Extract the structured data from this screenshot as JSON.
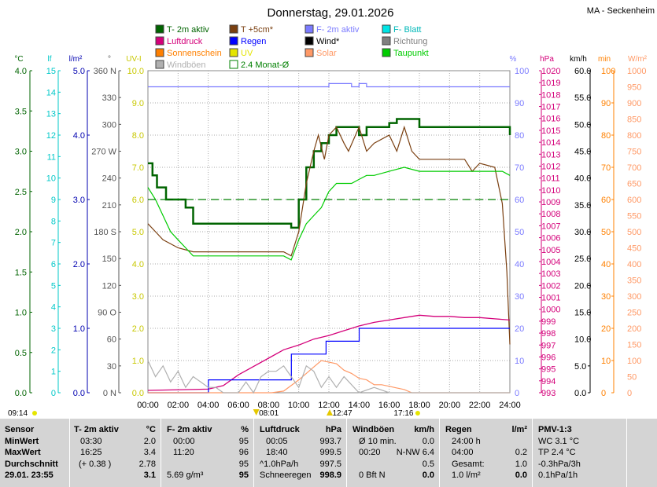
{
  "header": {
    "title": "Donnerstag, 29.01.2026",
    "location": "MA - Seckenheim"
  },
  "legend": [
    {
      "label": "T- 2m aktiv",
      "color": "#006400",
      "box": "filled"
    },
    {
      "label": "T +5cm*",
      "color": "#7a3f10",
      "box": "filled"
    },
    {
      "label": "F- 2m aktiv",
      "color": "#7b7bff",
      "box": "filled"
    },
    {
      "label": "F- Blatt",
      "color": "#00e5e5",
      "box": "filled"
    },
    {
      "label": "Luftdruck",
      "color": "#d4007a",
      "box": "filled"
    },
    {
      "label": "Regen",
      "color": "#0000ff",
      "box": "filled"
    },
    {
      "label": "Wind*",
      "color": "#000000",
      "box": "filled"
    },
    {
      "label": "Richtung",
      "color": "#808080",
      "box": "filled"
    },
    {
      "label": "Sonnenschein",
      "color": "#ff8000",
      "box": "filled"
    },
    {
      "label": "UV",
      "color": "#e5e500",
      "box": "filled"
    },
    {
      "label": "Solar",
      "color": "#ff9966",
      "box": "filled"
    },
    {
      "label": "Taupunkt",
      "color": "#00cc00",
      "box": "filled"
    },
    {
      "label": "Windböen",
      "color": "#b0b0b0",
      "box": "filled"
    },
    {
      "label": "2.4 Monat-Ø",
      "color": "#008000",
      "box": "outline"
    }
  ],
  "axes": {
    "celsius": {
      "unit": "°C",
      "color": "#006400",
      "ticks": [
        "4.0",
        "3.5",
        "3.0",
        "2.5",
        "2.0",
        "1.5",
        "1.0",
        "0.5",
        "0.0"
      ]
    },
    "leaf": {
      "unit": "lf",
      "color": "#00c8c8",
      "ticks": [
        "15",
        "14",
        "13",
        "12",
        "11",
        "10",
        "9",
        "8",
        "7",
        "6",
        "5",
        "4",
        "3",
        "2",
        "1",
        "0"
      ]
    },
    "rain": {
      "unit": "l/m²",
      "color": "#0000b0",
      "ticks": [
        "5.0",
        "4.0",
        "3.0",
        "2.0",
        "1.0",
        "0.0"
      ]
    },
    "direction": {
      "unit": "°",
      "color": "#555555",
      "ticks": [
        "360 N",
        "330",
        "300",
        "270 W",
        "240",
        "210",
        "180 S",
        "150",
        "120",
        "90 O",
        "60",
        "30",
        "0 N"
      ]
    },
    "uv": {
      "unit": "UV-I",
      "color": "#c8c800",
      "ticks": [
        "10.0",
        "9.0",
        "8.0",
        "7.0",
        "6.0",
        "5.0",
        "4.0",
        "3.0",
        "2.0",
        "1.0",
        "0.0"
      ]
    },
    "humidity": {
      "unit": "%",
      "color": "#7b7bff",
      "ticks": [
        "100",
        "90",
        "80",
        "70",
        "60",
        "50",
        "40",
        "30",
        "20",
        "10",
        "0"
      ]
    },
    "pressure": {
      "unit": "hPa",
      "color": "#d4007a",
      "ticks": [
        "1020",
        "1019",
        "1018",
        "1017",
        "1016",
        "1015",
        "1014",
        "1013",
        "1012",
        "1011",
        "1010",
        "1009",
        "1008",
        "1007",
        "1006",
        "1005",
        "1004",
        "1003",
        "1002",
        "1001",
        "1000",
        "999",
        "998",
        "997",
        "996",
        "995",
        "994",
        "993"
      ]
    },
    "wind": {
      "unit": "km/h",
      "color": "#000000",
      "ticks": [
        "60.0",
        "55.0",
        "50.0",
        "45.0",
        "40.0",
        "35.0",
        "30.0",
        "25.0",
        "20.0",
        "15.0",
        "10.0",
        "5.0",
        "0.0"
      ]
    },
    "sunshine": {
      "unit": "min",
      "color": "#ff8000",
      "ticks": [
        "100",
        "90",
        "80",
        "70",
        "60",
        "50",
        "40",
        "30",
        "20",
        "10",
        "0"
      ]
    },
    "solar": {
      "unit": "W/m²",
      "color": "#ff9966",
      "ticks": [
        "1000",
        "950",
        "900",
        "850",
        "800",
        "750",
        "700",
        "650",
        "600",
        "550",
        "500",
        "450",
        "400",
        "350",
        "300",
        "250",
        "200",
        "150",
        "100",
        "50",
        "0"
      ]
    }
  },
  "time_axis": {
    "labels": [
      "00:00",
      "02:00",
      "04:00",
      "06:00",
      "08:00",
      "10:00",
      "12:00",
      "14:00",
      "16:00",
      "18:00",
      "20:00",
      "22:00",
      "24:00"
    ],
    "sunrise": "08:01",
    "noon": "12:47",
    "sunset": "17:16",
    "left_marker": "09:14"
  },
  "chart_data": {
    "type": "line",
    "x_unit": "hours",
    "xlim": [
      0,
      24
    ],
    "series": [
      {
        "name": "T- 2m aktiv",
        "unit": "°C",
        "color": "#006400",
        "x": [
          0,
          0.3,
          0.6,
          1.2,
          2.0,
          2.5,
          3.0,
          3.5,
          4.0,
          5.0,
          6.0,
          7.0,
          8.0,
          9.0,
          9.5,
          10.0,
          10.5,
          11.0,
          11.5,
          12.0,
          12.5,
          13.0,
          14.0,
          14.5,
          15.0,
          16.0,
          16.5,
          17.0,
          18.0,
          19.0,
          20.0,
          21.0,
          22.0,
          23.0,
          23.5,
          24.0
        ],
        "y": [
          2.85,
          2.7,
          2.55,
          2.4,
          2.4,
          2.3,
          2.1,
          2.1,
          2.1,
          2.1,
          2.1,
          2.1,
          2.1,
          2.1,
          2.05,
          2.4,
          2.8,
          3.0,
          3.1,
          3.2,
          3.3,
          3.3,
          3.2,
          3.3,
          3.3,
          3.35,
          3.4,
          3.4,
          3.3,
          3.3,
          3.3,
          3.3,
          3.3,
          3.3,
          3.3,
          3.2
        ]
      },
      {
        "name": "T +5cm*",
        "unit": "°C",
        "color": "#7a3f10",
        "x": [
          0,
          0.5,
          1.0,
          1.5,
          2.0,
          3.0,
          4.0,
          5.0,
          6.0,
          7.0,
          8.0,
          9.0,
          9.5,
          10.0,
          10.5,
          11.0,
          11.3,
          11.7,
          12.0,
          12.5,
          13.0,
          13.3,
          14.0,
          14.5,
          15.0,
          16.0,
          16.5,
          17.0,
          17.5,
          18.0,
          19.0,
          20.0,
          21.0,
          21.5,
          22.0,
          23.0,
          23.5,
          23.8,
          24.0
        ],
        "y": [
          2.1,
          2.0,
          1.9,
          1.85,
          1.8,
          1.75,
          1.75,
          1.75,
          1.75,
          1.75,
          1.75,
          1.75,
          1.7,
          2.0,
          2.6,
          3.0,
          3.2,
          2.9,
          3.2,
          3.3,
          3.1,
          3.0,
          3.3,
          3.0,
          3.1,
          3.2,
          3.0,
          3.3,
          3.0,
          2.9,
          2.9,
          2.9,
          2.9,
          2.75,
          2.85,
          2.8,
          2.35,
          1.5,
          0.6
        ]
      },
      {
        "name": "F- 2m aktiv",
        "unit": "%",
        "color": "#7b7bff",
        "x": [
          0,
          2,
          4,
          6,
          8,
          10,
          11.5,
          12,
          13,
          13.5,
          14,
          14.5,
          15,
          16,
          18,
          20,
          22,
          24
        ],
        "y": [
          95,
          95,
          95,
          95,
          95,
          95,
          95,
          96,
          96,
          95,
          96,
          95,
          95,
          95,
          95,
          95,
          95,
          95
        ]
      },
      {
        "name": "Luftdruck",
        "unit": "hPa",
        "color": "#d4007a",
        "x": [
          0,
          4,
          5,
          6,
          7,
          8,
          9,
          10,
          11,
          12,
          13,
          14,
          15,
          16,
          17,
          18,
          19,
          20,
          21,
          22,
          23,
          24
        ],
        "y": [
          993.2,
          993.3,
          993.6,
          994.5,
          995.2,
          995.9,
          996.6,
          997.0,
          997.5,
          997.8,
          998.2,
          998.6,
          998.9,
          999.1,
          999.3,
          999.5,
          999.4,
          999.4,
          999.3,
          999.3,
          999.2,
          999.1
        ]
      },
      {
        "name": "Regen",
        "unit": "l/m²",
        "color": "#0000ff",
        "x": [
          0,
          4,
          4.01,
          9.5,
          9.51,
          11.8,
          11.81,
          14.0,
          14.01,
          15.6,
          15.61,
          24
        ],
        "y": [
          0,
          0,
          0.2,
          0.2,
          0.6,
          0.6,
          0.8,
          0.8,
          1.0,
          1.0,
          1.0,
          1.0
        ]
      },
      {
        "name": "Taupunkt",
        "unit": "°C",
        "color": "#00cc00",
        "x": [
          0,
          0.5,
          1.0,
          1.5,
          2.0,
          2.5,
          3.0,
          4.0,
          5.0,
          6.0,
          7.0,
          8.0,
          9.0,
          9.5,
          10.0,
          10.5,
          11.0,
          11.5,
          12.0,
          12.5,
          13.0,
          13.5,
          14.0,
          14.5,
          15.0,
          16.0,
          17.0,
          18.0,
          19.0,
          20.0,
          21.0,
          22.0,
          23.0,
          23.5,
          24.0
        ],
        "y": [
          2.55,
          2.4,
          2.2,
          2.0,
          1.9,
          1.8,
          1.7,
          1.7,
          1.7,
          1.7,
          1.7,
          1.7,
          1.7,
          1.65,
          1.9,
          2.1,
          2.2,
          2.3,
          2.5,
          2.6,
          2.6,
          2.6,
          2.65,
          2.7,
          2.7,
          2.75,
          2.8,
          2.75,
          2.75,
          2.75,
          2.75,
          2.75,
          2.75,
          2.75,
          2.7
        ]
      },
      {
        "name": "Solar",
        "unit": "W/m²",
        "color": "#ff9966",
        "x": [
          0,
          8.2,
          9.0,
          10.0,
          10.5,
          11.0,
          11.5,
          12.0,
          12.5,
          13.0,
          13.5,
          14.0,
          14.5,
          15.0,
          15.5,
          16.0,
          16.5,
          17.0,
          17.5,
          24
        ],
        "y": [
          0,
          0,
          5,
          40,
          60,
          80,
          100,
          95,
          90,
          70,
          60,
          45,
          40,
          25,
          25,
          20,
          15,
          10,
          0,
          0
        ]
      },
      {
        "name": "Windböen",
        "unit": "km/h",
        "color": "#b0b0b0",
        "x": [
          0,
          0.5,
          1.0,
          1.5,
          2.0,
          2.5,
          3.0,
          3.5,
          4.0,
          4.5,
          5.0,
          5.5,
          6.0,
          6.5,
          7.0,
          7.5,
          8.0,
          8.5,
          9.0,
          9.5,
          10.0,
          10.5,
          11.0,
          11.5,
          12.0,
          12.5,
          13.0,
          14.0,
          15.0,
          16.0,
          17.0,
          18.0,
          24
        ],
        "y": [
          6,
          3,
          5,
          2,
          4,
          1,
          3,
          2,
          1,
          1,
          0,
          0,
          0,
          2,
          0,
          3,
          4,
          4,
          5,
          3,
          1,
          5,
          4,
          1,
          3,
          1,
          3,
          0,
          1,
          0,
          0,
          0,
          0
        ]
      },
      {
        "name": "2.4 Monat-Ø",
        "unit": "°C",
        "color": "#008000",
        "x": [
          0,
          24
        ],
        "y": [
          2.4,
          2.4
        ]
      }
    ]
  },
  "stats": {
    "sensor": {
      "head": "Sensor",
      "rows": [
        "MinWert",
        "MaxWert",
        "Durchschnitt",
        "29.01.  23:55"
      ]
    },
    "t2m": {
      "head": "T- 2m aktiv",
      "unit": "°C",
      "rows": [
        [
          "03:30",
          "2.0"
        ],
        [
          "16:25",
          "3.4"
        ],
        [
          "(+ 0.38 )",
          "2.78"
        ],
        [
          "",
          "3.1"
        ]
      ]
    },
    "f2m": {
      "head": "F- 2m aktiv",
      "unit": "%",
      "rows": [
        [
          "00:00",
          "95"
        ],
        [
          "11:20",
          "96"
        ],
        [
          "",
          "95"
        ],
        [
          "5.69 g/m³",
          "95"
        ]
      ]
    },
    "pressure": {
      "head": "Luftdruck",
      "unit": "hPa",
      "rows": [
        [
          "00:05",
          "993.7"
        ],
        [
          "18:40",
          "999.5"
        ],
        [
          "^1.0hPa/h",
          "997.5"
        ],
        [
          "Schneeregen",
          "998.9"
        ]
      ]
    },
    "gusts": {
      "head": "Windböen",
      "unit": "km/h",
      "rows": [
        [
          "Ø 10 min.",
          "0.0"
        ],
        [
          "00:20",
          "N-NW 6.4"
        ],
        [
          "",
          "0.5"
        ],
        [
          "0 Bft N",
          "0.0"
        ]
      ]
    },
    "rain": {
      "head": "Regen",
      "unit": "l/m²",
      "rows": [
        [
          "24:00 h",
          ""
        ],
        [
          "04:00",
          "0.2"
        ],
        [
          "Gesamt:",
          "1.0"
        ],
        [
          "1.0 l/m²",
          "0.0"
        ]
      ]
    },
    "pmv": {
      "head": "PMV-1:3",
      "rows": [
        "WC 3.1 °C",
        "TP 2.4 °C",
        "-0.3hPa/3h",
        "0.1hPa/1h"
      ]
    }
  }
}
